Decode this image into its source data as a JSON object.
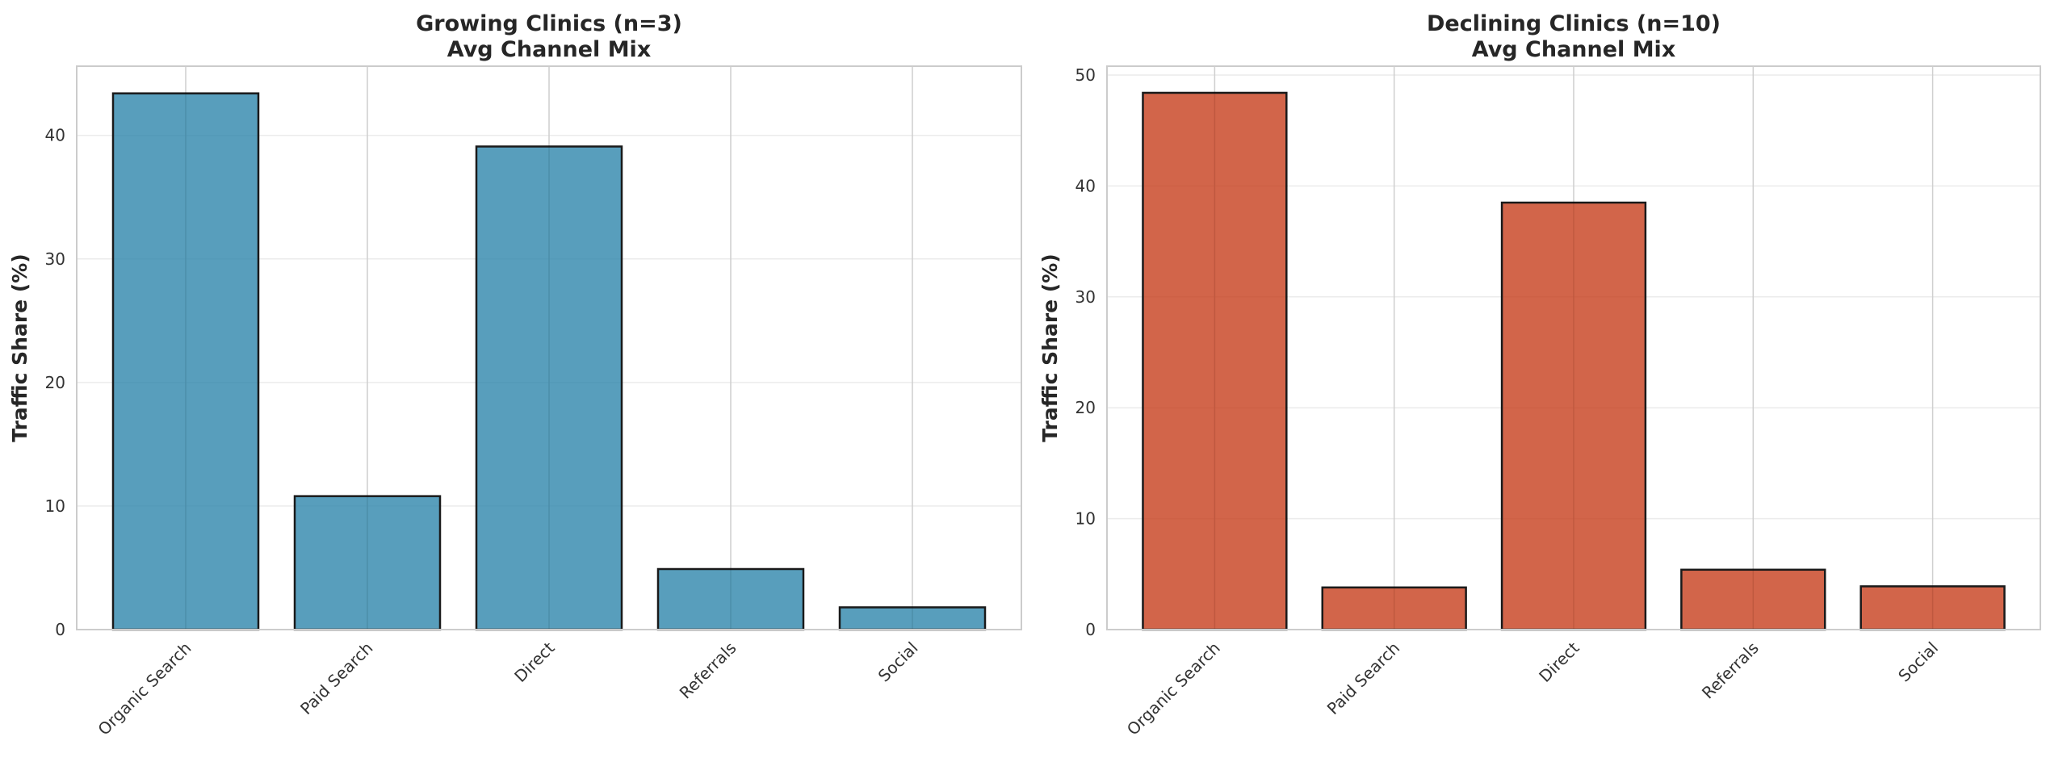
{
  "chart_data": [
    {
      "type": "bar",
      "title": "Growing Clinics (n=3)",
      "subtitle": "Avg Channel Mix",
      "xlabel": "",
      "ylabel": "Traffic Share (%)",
      "categories": [
        "Organic Search",
        "Paid Search",
        "Direct",
        "Referrals",
        "Social"
      ],
      "values": [
        43.4,
        10.8,
        39.1,
        4.9,
        1.8
      ],
      "ylim": [
        0,
        45.6
      ],
      "yticks": [
        0,
        10,
        20,
        30,
        40
      ],
      "color": "#2E86AB",
      "grid": true
    },
    {
      "type": "bar",
      "title": "Declining Clinics (n=10)",
      "subtitle": "Avg Channel Mix",
      "xlabel": "",
      "ylabel": "Traffic Share (%)",
      "categories": [
        "Organic Search",
        "Paid Search",
        "Direct",
        "Referrals",
        "Social"
      ],
      "values": [
        48.4,
        3.8,
        38.5,
        5.4,
        3.9
      ],
      "ylim": [
        0,
        50.8
      ],
      "yticks": [
        0,
        10,
        20,
        30,
        40,
        50
      ],
      "color": "#C73E1D",
      "grid": true
    }
  ]
}
